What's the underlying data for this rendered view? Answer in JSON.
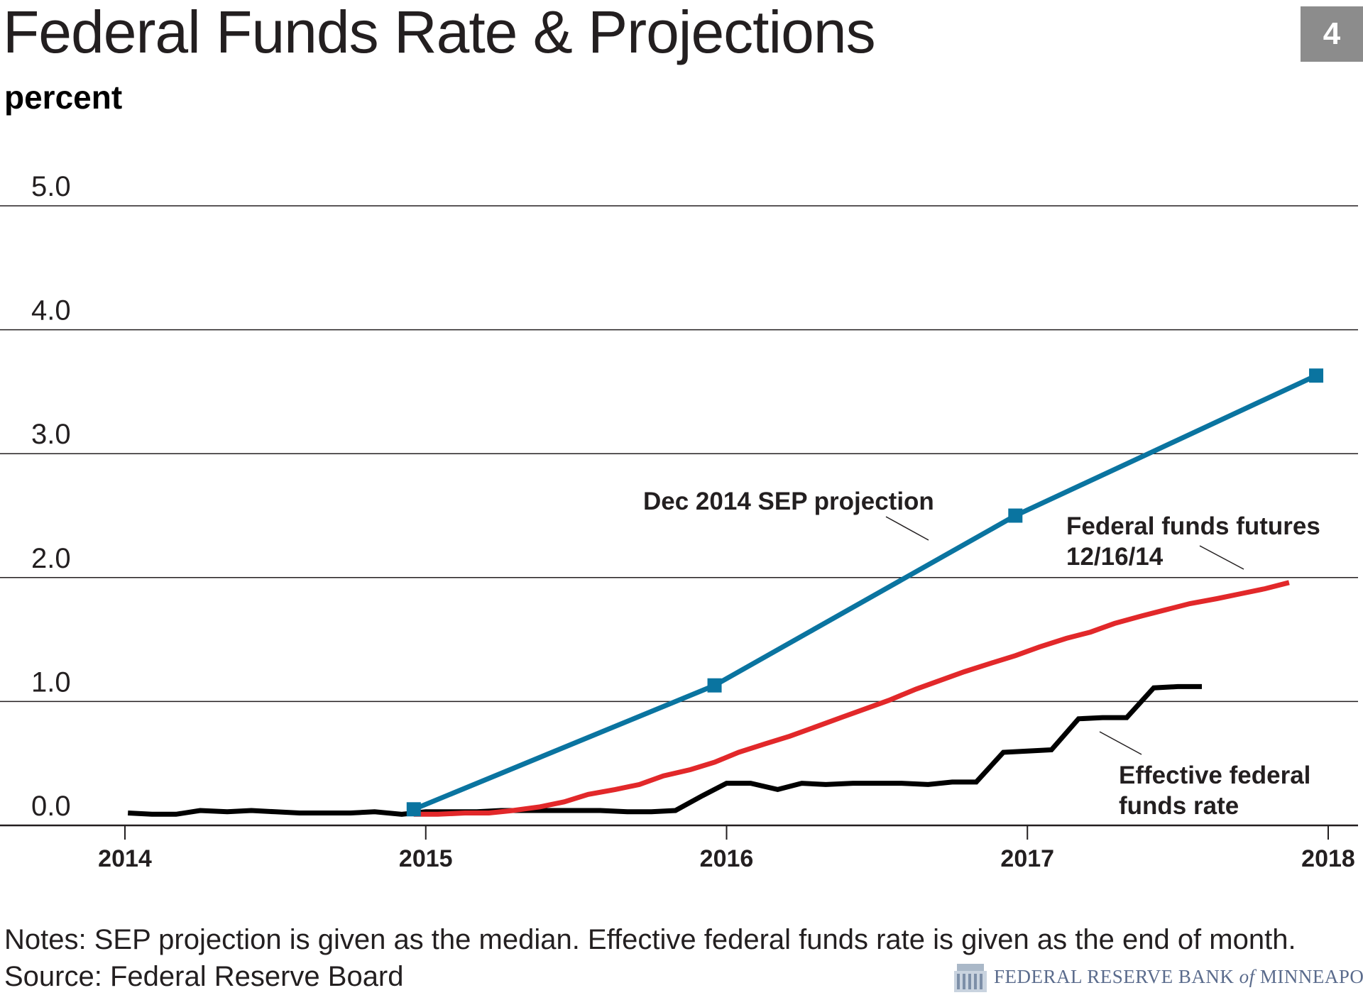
{
  "title": "Federal Funds Rate & Projections",
  "badge": "4",
  "unit_label": "percent",
  "notes": {
    "line1": "Notes: SEP projection is given as the median. Effective federal funds rate is given as the end of month.",
    "line2": "Source: Federal Reserve Board"
  },
  "logo": {
    "text_a": "FEDERAL RESERVE BANK",
    "text_of": "of",
    "text_b": "MINNEAPOLIS"
  },
  "colors": {
    "sep": "#0a74a0",
    "futures": "#e2282a",
    "effr": "#000000",
    "grid": "#231f20",
    "badge": "#8c8c8c"
  },
  "chart_data": {
    "type": "line",
    "ylim": [
      0,
      5
    ],
    "xlim": [
      2014,
      2018.13
    ],
    "y_ticks": [
      "0.0",
      "1.0",
      "2.0",
      "3.0",
      "4.0",
      "5.0"
    ],
    "x_ticks": [
      "2014",
      "2015",
      "2016",
      "2017",
      "2018"
    ],
    "grid": true,
    "series": [
      {
        "name": "Dec 2014 SEP projection",
        "color": "#0a74a0",
        "markers": true,
        "x": [
          2014.96,
          2015.96,
          2016.96,
          2017.96
        ],
        "y": [
          0.13,
          1.13,
          2.5,
          3.63
        ]
      },
      {
        "name": "Federal funds futures 12/16/14",
        "color": "#e2282a",
        "markers": false,
        "x": [
          2014.96,
          2015.04,
          2015.13,
          2015.21,
          2015.29,
          2015.38,
          2015.46,
          2015.54,
          2015.63,
          2015.71,
          2015.79,
          2015.88,
          2015.96,
          2016.04,
          2016.13,
          2016.21,
          2016.29,
          2016.38,
          2016.46,
          2016.54,
          2016.63,
          2016.71,
          2016.79,
          2016.88,
          2016.96,
          2017.04,
          2017.13,
          2017.21,
          2017.29,
          2017.38,
          2017.46,
          2017.54,
          2017.63,
          2017.71,
          2017.79,
          2017.87
        ],
        "y": [
          0.09,
          0.09,
          0.1,
          0.1,
          0.12,
          0.15,
          0.19,
          0.25,
          0.29,
          0.33,
          0.4,
          0.45,
          0.51,
          0.59,
          0.66,
          0.72,
          0.79,
          0.87,
          0.94,
          1.01,
          1.1,
          1.17,
          1.24,
          1.31,
          1.37,
          1.44,
          1.51,
          1.56,
          1.63,
          1.69,
          1.74,
          1.79,
          1.83,
          1.87,
          1.91,
          1.96
        ]
      },
      {
        "name": "Effective federal funds rate",
        "color": "#000000",
        "markers": false,
        "x": [
          2014.01,
          2014.09,
          2014.17,
          2014.25,
          2014.34,
          2014.42,
          2014.5,
          2014.58,
          2014.67,
          2014.75,
          2014.83,
          2014.92,
          2015.0,
          2015.08,
          2015.17,
          2015.25,
          2015.33,
          2015.42,
          2015.5,
          2015.58,
          2015.67,
          2015.75,
          2015.83,
          2015.92,
          2016.0,
          2016.08,
          2016.17,
          2016.25,
          2016.33,
          2016.42,
          2016.5,
          2016.58,
          2016.67,
          2016.75,
          2016.83,
          2016.92,
          2017.0,
          2017.08,
          2017.17,
          2017.25,
          2017.33,
          2017.42,
          2017.5,
          2017.58
        ],
        "y": [
          0.1,
          0.09,
          0.09,
          0.12,
          0.11,
          0.12,
          0.11,
          0.1,
          0.1,
          0.1,
          0.11,
          0.09,
          0.11,
          0.11,
          0.11,
          0.12,
          0.12,
          0.12,
          0.12,
          0.12,
          0.11,
          0.11,
          0.12,
          0.24,
          0.34,
          0.34,
          0.29,
          0.34,
          0.33,
          0.34,
          0.34,
          0.34,
          0.33,
          0.35,
          0.35,
          0.59,
          0.6,
          0.61,
          0.86,
          0.87,
          0.87,
          1.11,
          1.12,
          1.12
        ]
      }
    ],
    "annotations": [
      {
        "lines": [
          "Dec 2014 SEP projection"
        ],
        "series": 0
      },
      {
        "lines": [
          "Federal funds futures",
          "12/16/14"
        ],
        "series": 1
      },
      {
        "lines": [
          "Effective federal",
          "funds rate"
        ],
        "series": 2
      }
    ]
  }
}
